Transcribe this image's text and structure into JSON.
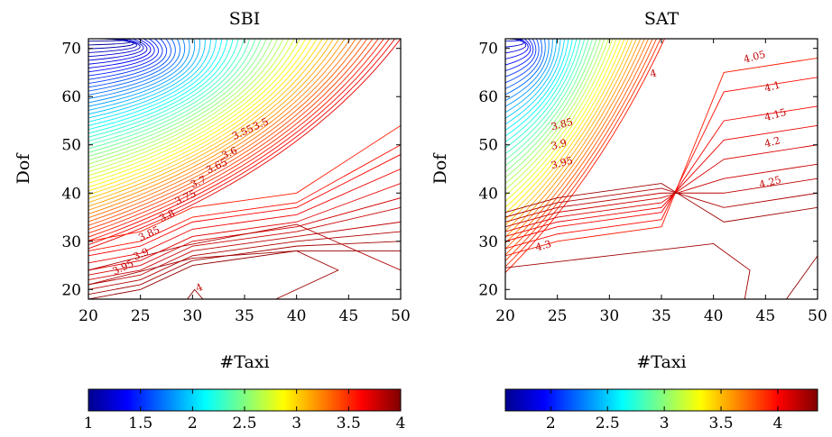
{
  "chart_data": [
    {
      "type": "contour",
      "title": "SBI",
      "xlabel": "#Taxi",
      "ylabel": "Dof",
      "xlim": [
        20,
        50
      ],
      "ylim": [
        18,
        72
      ],
      "xticks": [
        "20",
        "25",
        "30",
        "35",
        "40",
        "45",
        "50"
      ],
      "yticks": [
        "20",
        "30",
        "40",
        "50",
        "60",
        "70"
      ],
      "colormap": "jet",
      "colorbar": {
        "range": [
          1,
          4
        ],
        "ticks": [
          "1",
          "1.5",
          "2",
          "2.5",
          "3",
          "3.5",
          "4"
        ]
      },
      "contour_labels": [
        "3.5",
        "3.55",
        "3.6",
        "3.65",
        "3.7",
        "3.75",
        "3.8",
        "3.85",
        "3.9",
        "3.95",
        "4"
      ]
    },
    {
      "type": "contour",
      "title": "SAT",
      "xlabel": "#Taxi",
      "ylabel": "Dof",
      "xlim": [
        20,
        50
      ],
      "ylim": [
        18,
        72
      ],
      "xticks": [
        "20",
        "25",
        "30",
        "35",
        "40",
        "45",
        "50"
      ],
      "yticks": [
        "20",
        "30",
        "40",
        "50",
        "60",
        "70"
      ],
      "colormap": "jet",
      "colorbar": {
        "range": [
          1.6,
          4.35
        ],
        "ticks": [
          "2",
          "2.5",
          "3",
          "3.5",
          "4"
        ]
      },
      "contour_labels": [
        "3.85",
        "3.9",
        "3.95",
        "4",
        "4.05",
        "4.1",
        "4.15",
        "4.2",
        "4.25",
        "4.3"
      ]
    }
  ]
}
